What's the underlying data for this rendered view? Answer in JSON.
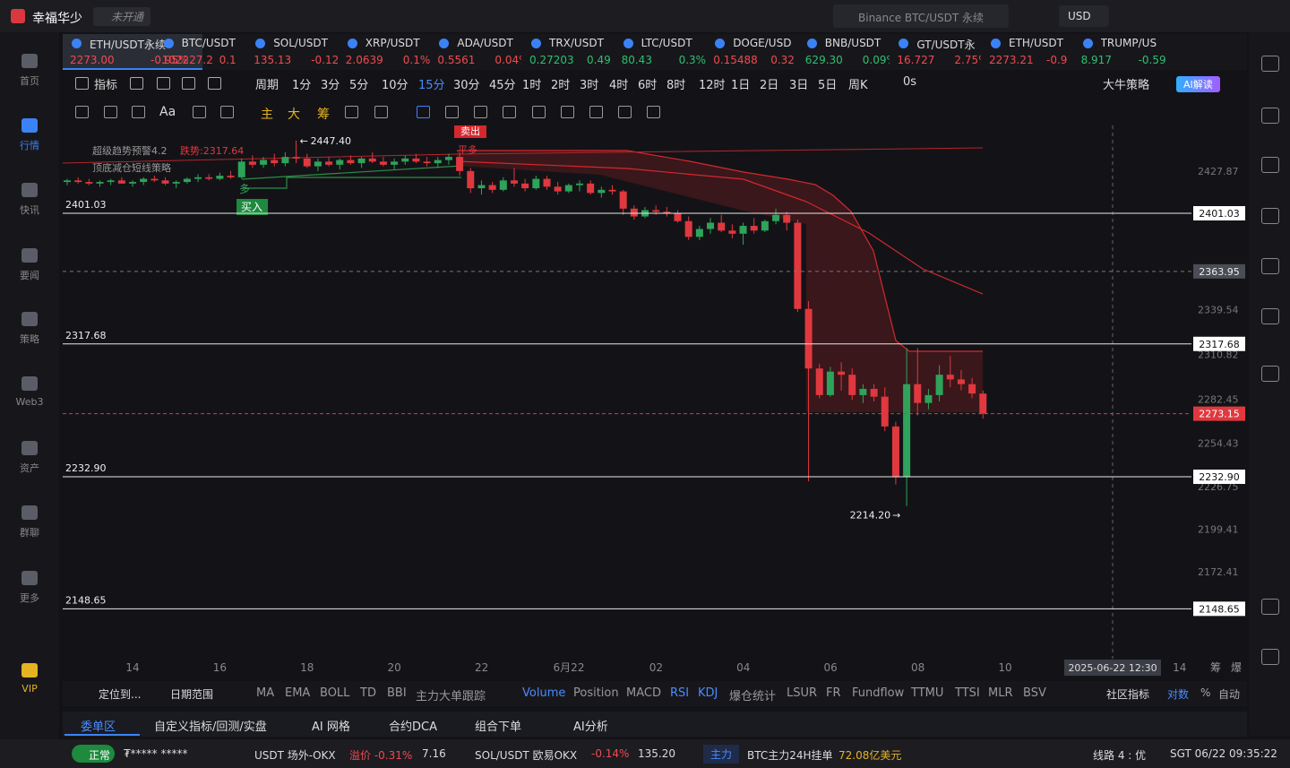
{
  "app": {
    "title": "幸福华少",
    "status": "未开通",
    "search": "Binance BTC/USDT 永续",
    "currency": "USD"
  },
  "left_nav": [
    "首页",
    "行情",
    "快讯",
    "要闻",
    "策略",
    "Web3",
    "资产",
    "群聊",
    "更多",
    "VIP"
  ],
  "tabs": [
    {
      "name": "ETH/USDT永续",
      "price": "2273.00",
      "change": "-0.95%",
      "color": "#f04a4f"
    },
    {
      "name": "BTC/USDT",
      "price": "102227.2",
      "change": "0.1",
      "color": "#f04a4f"
    },
    {
      "name": "SOL/USDT",
      "price": "135.13",
      "change": "-0.12",
      "color": "#f04a4f"
    },
    {
      "name": "XRP/USDT",
      "price": "2.0639",
      "change": "0.1%",
      "color": "#f04a4f"
    },
    {
      "name": "ADA/USDT",
      "price": "0.5561",
      "change": "0.04%",
      "color": "#f04a4f"
    },
    {
      "name": "TRX/USDT",
      "price": "0.27203",
      "change": "0.49",
      "color": "#2fbf71"
    },
    {
      "name": "LTC/USDT",
      "price": "80.43",
      "change": "0.3%",
      "color": "#2fbf71"
    },
    {
      "name": "DOGE/USD",
      "price": "0.15488",
      "change": "0.32",
      "color": "#f04a4f"
    },
    {
      "name": "BNB/USDT",
      "price": "629.30",
      "change": "0.09%",
      "color": "#2fbf71"
    },
    {
      "name": "GT/USDT永",
      "price": "16.727",
      "change": "2.75%",
      "color": "#f04a4f"
    },
    {
      "name": "ETH/USDT",
      "price": "2273.21",
      "change": "-0.9",
      "color": "#f04a4f"
    },
    {
      "name": "TRUMP/US",
      "price": "8.917",
      "change": "-0.59%",
      "color": "#2fbf71"
    }
  ],
  "toolbar": [
    "指标",
    "周期",
    "1分",
    "3分",
    "5分",
    "10分",
    "15分",
    "30分",
    "45分",
    "1时",
    "2时",
    "3时",
    "4时",
    "6时",
    "8时",
    "12时",
    "1日",
    "2日",
    "3日",
    "5日",
    "周K",
    "0s",
    "大牛策略",
    "AI解读"
  ],
  "drawing_tools": [
    "Aa",
    "主",
    "大",
    "筹"
  ],
  "overlay": {
    "name": "超级趋势预警4.2",
    "trend": "跌势:2317.64",
    "strategy": "顶底减仓短线策略",
    "buy": "买入",
    "sell": "卖出",
    "close_long": "平多",
    "long": "多"
  },
  "crosshair_time": "2025-06-22 12:30",
  "axis_tools": [
    "筹",
    "爆"
  ],
  "indicator_bar": {
    "locate": "定位到...",
    "range": "日期范围",
    "items": [
      "MA",
      "EMA",
      "BOLL",
      "TD",
      "BBI",
      "主力大单跟踪",
      "Volume",
      "Position",
      "MACD",
      "RSI",
      "KDJ",
      "爆仓统计",
      "LSUR",
      "FR",
      "Fundflow",
      "TTMU",
      "TTSI",
      "MLR",
      "BSV"
    ],
    "community": "社区指标",
    "log": "对数",
    "percent": "%",
    "auto": "自动"
  },
  "bottom_tabs": [
    "委单区",
    "自定义指标/回测/实盘",
    "AI 网格",
    "合约DCA",
    "组合下单",
    "AI分析"
  ],
  "status_bar": {
    "state": "正常",
    "masked": "₮***** *****",
    "feed1": "USDT 场外-OKX",
    "premium": "溢价 -0.31%",
    "premium_value": "7.16",
    "feed2": "SOL/USDT 欧易OKX",
    "feed2_change": "-0.14%",
    "feed2_price": "135.20",
    "tag": "主力",
    "news": "BTC主力24H挂单",
    "news_value": "72.08亿美元",
    "line": "线路 4 : 优",
    "time": "SGT 06/22 09:35:22"
  },
  "chart_data": {
    "type": "candlestick",
    "up_color": "#2ea35a",
    "down_color": "#e0383e",
    "categories": [
      "14",
      "16",
      "18",
      "20",
      "22",
      "6月22",
      "02",
      "04",
      "06",
      "08",
      "10",
      null,
      "14"
    ],
    "ylim": [
      2116.82,
      2457.07
    ],
    "yticks": [
      2427.87,
      2339.54,
      2310.82,
      2282.45,
      2254.43,
      2226.75,
      2199.41,
      2172.41
    ],
    "levels": [
      2401.03,
      2317.68,
      {
        "value": 2232.9,
        "label": "2232.90"
      },
      2148.65
    ],
    "crosshair_price": 2363.95,
    "last_price": 2273.15,
    "high": {
      "value": 2447.4,
      "label": "2447.40"
    },
    "low": {
      "value": 2214.2,
      "label": "2214.20"
    },
    "candles": [
      [
        2421,
        2423,
        2419,
        2422
      ],
      [
        2422,
        2424,
        2420,
        2421
      ],
      [
        2421,
        2423,
        2419,
        2420
      ],
      [
        2420,
        2422,
        2418,
        2421
      ],
      [
        2421,
        2423,
        2419,
        2422
      ],
      [
        2422,
        2424,
        2420,
        2420
      ],
      [
        2420,
        2422,
        2418,
        2421
      ],
      [
        2421,
        2424,
        2419,
        2423
      ],
      [
        2423,
        2425,
        2421,
        2422
      ],
      [
        2422,
        2424,
        2419,
        2420
      ],
      [
        2420,
        2422,
        2417,
        2421
      ],
      [
        2421,
        2424,
        2420,
        2423
      ],
      [
        2423,
        2426,
        2421,
        2424
      ],
      [
        2424,
        2426,
        2422,
        2423
      ],
      [
        2423,
        2427,
        2422,
        2425
      ],
      [
        2425,
        2428,
        2423,
        2424
      ],
      [
        2424,
        2436,
        2423,
        2434
      ],
      [
        2434,
        2438,
        2430,
        2432
      ],
      [
        2432,
        2437,
        2430,
        2435
      ],
      [
        2435,
        2439,
        2431,
        2433
      ],
      [
        2433,
        2440,
        2431,
        2437
      ],
      [
        2437,
        2447.4,
        2433,
        2436
      ],
      [
        2436,
        2439,
        2430,
        2431
      ],
      [
        2431,
        2436,
        2428,
        2434
      ],
      [
        2434,
        2437,
        2431,
        2432
      ],
      [
        2432,
        2436,
        2429,
        2435
      ],
      [
        2435,
        2438,
        2432,
        2433
      ],
      [
        2433,
        2437,
        2430,
        2436
      ],
      [
        2436,
        2440,
        2433,
        2434
      ],
      [
        2434,
        2437,
        2431,
        2432
      ],
      [
        2432,
        2436,
        2429,
        2434
      ],
      [
        2434,
        2438,
        2432,
        2436
      ],
      [
        2436,
        2439,
        2433,
        2434
      ],
      [
        2434,
        2437,
        2431,
        2433
      ],
      [
        2433,
        2437,
        2430,
        2435
      ],
      [
        2435,
        2439,
        2432,
        2437
      ],
      [
        2437,
        2440,
        2425,
        2428
      ],
      [
        2428,
        2430,
        2414,
        2417
      ],
      [
        2417,
        2422,
        2413,
        2419
      ],
      [
        2419,
        2421,
        2414,
        2416
      ],
      [
        2416,
        2424,
        2415,
        2422
      ],
      [
        2422,
        2430,
        2418,
        2420
      ],
      [
        2420,
        2423,
        2415,
        2417
      ],
      [
        2417,
        2425,
        2416,
        2423
      ],
      [
        2423,
        2425,
        2416,
        2418
      ],
      [
        2418,
        2421,
        2413,
        2415
      ],
      [
        2415,
        2420,
        2414,
        2419
      ],
      [
        2419,
        2422,
        2415,
        2420
      ],
      [
        2420,
        2422,
        2413,
        2414
      ],
      [
        2414,
        2418,
        2411,
        2416
      ],
      [
        2416,
        2419,
        2413,
        2415
      ],
      [
        2415,
        2416,
        2400,
        2404
      ],
      [
        2404,
        2406,
        2397,
        2399
      ],
      [
        2399,
        2405,
        2398,
        2403
      ],
      [
        2403,
        2406,
        2400,
        2402
      ],
      [
        2402,
        2405,
        2399,
        2401
      ],
      [
        2401,
        2403,
        2395,
        2396
      ],
      [
        2396,
        2399,
        2384,
        2386
      ],
      [
        2386,
        2393,
        2384,
        2391
      ],
      [
        2391,
        2398,
        2388,
        2395
      ],
      [
        2395,
        2400,
        2389,
        2390
      ],
      [
        2390,
        2394,
        2385,
        2388
      ],
      [
        2388,
        2395,
        2381,
        2393
      ],
      [
        2393,
        2398,
        2388,
        2390
      ],
      [
        2390,
        2397,
        2389,
        2396
      ],
      [
        2396,
        2404,
        2394,
        2400
      ],
      [
        2400,
        2402,
        2390,
        2395
      ],
      [
        2395,
        2397,
        2338,
        2340
      ],
      [
        2340,
        2345,
        2230,
        2302
      ],
      [
        2302,
        2305,
        2283,
        2285
      ],
      [
        2285,
        2303,
        2284,
        2300
      ],
      [
        2300,
        2306,
        2288,
        2298
      ],
      [
        2298,
        2302,
        2282,
        2285
      ],
      [
        2285,
        2292,
        2280,
        2289
      ],
      [
        2289,
        2292,
        2281,
        2284
      ],
      [
        2284,
        2290,
        2262,
        2265
      ],
      [
        2265,
        2268,
        2228,
        2233
      ],
      [
        2233,
        2315,
        2214.2,
        2292
      ],
      [
        2292,
        2315,
        2272,
        2280
      ],
      [
        2280,
        2289,
        2276,
        2285
      ],
      [
        2285,
        2304,
        2281,
        2298
      ],
      [
        2298,
        2310,
        2290,
        2295
      ],
      [
        2295,
        2301,
        2288,
        2292
      ],
      [
        2292,
        2296,
        2283,
        2286
      ],
      [
        2286,
        2288,
        2270,
        2273.15
      ]
    ]
  }
}
